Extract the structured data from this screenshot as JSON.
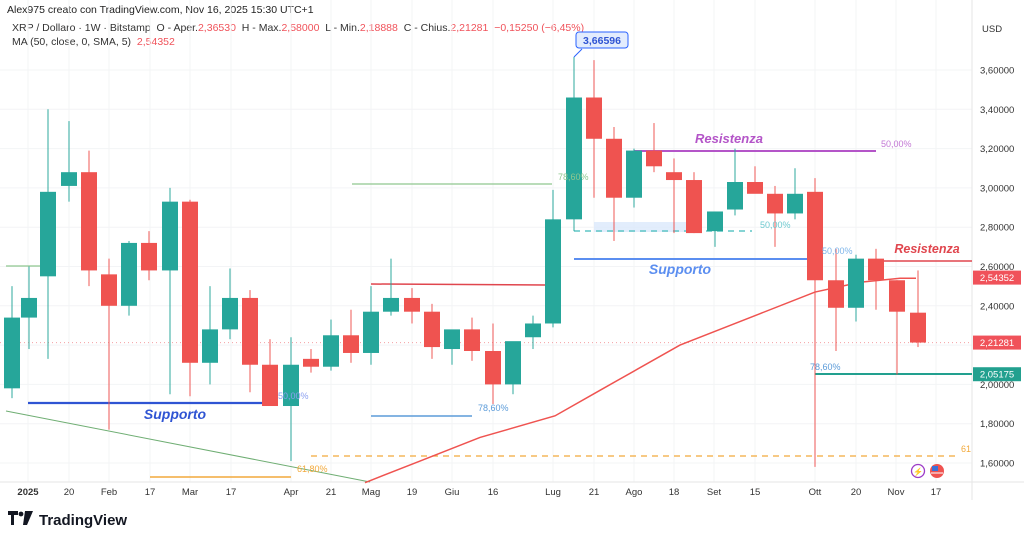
{
  "header": {
    "created": "Alex975 creato con TradingView.com, Nov 16, 2025 15:30 UTC+1",
    "symbol": "XRP / Dollaro · 1W · Bitstamp",
    "o_label": "O - Aper.",
    "o_value": "2,36530",
    "h_label": "H - Max.",
    "h_value": "2,58000",
    "l_label": "L - Min.",
    "l_value": "2,18888",
    "c_label": "C - Chius.",
    "c_value": "2,21281",
    "change": "−0,15250 (−6,45%)",
    "ma_label": "MA (50, close, 0, SMA, 5)",
    "ma_value": "2,54352"
  },
  "logo": {
    "mark": "TV",
    "text": "TradingView"
  },
  "chart_data": {
    "type": "candlestick",
    "title": "XRP / Dollaro · 1W · Bitstamp",
    "currency": "USD",
    "ylim": [
      1.5,
      3.75
    ],
    "y_ticks": [
      "3,60000",
      "3,40000",
      "3,20000",
      "3,00000",
      "2,80000",
      "2,60000",
      "2,40000",
      "2,20000",
      "2,00000",
      "1,80000",
      "1,60000"
    ],
    "x_ticks": [
      {
        "label": "2025",
        "x": 28,
        "bold": true
      },
      {
        "label": "20",
        "x": 69
      },
      {
        "label": "Feb",
        "x": 109
      },
      {
        "label": "17",
        "x": 150
      },
      {
        "label": "Mar",
        "x": 190
      },
      {
        "label": "17",
        "x": 231
      },
      {
        "label": "Apr",
        "x": 291
      },
      {
        "label": "21",
        "x": 331
      },
      {
        "label": "Mag",
        "x": 371
      },
      {
        "label": "19",
        "x": 412
      },
      {
        "label": "Giu",
        "x": 452
      },
      {
        "label": "16",
        "x": 493
      },
      {
        "label": "Lug",
        "x": 553
      },
      {
        "label": "21",
        "x": 594
      },
      {
        "label": "Ago",
        "x": 634
      },
      {
        "label": "18",
        "x": 674
      },
      {
        "label": "Set",
        "x": 714
      },
      {
        "label": "15",
        "x": 755
      },
      {
        "label": "Ott",
        "x": 815
      },
      {
        "label": "20",
        "x": 856
      },
      {
        "label": "Nov",
        "x": 896
      },
      {
        "label": "17",
        "x": 936
      }
    ],
    "candles": [
      {
        "x": 12,
        "o": 1.98,
        "h": 2.5,
        "l": 1.93,
        "c": 2.34
      },
      {
        "x": 29,
        "o": 2.34,
        "h": 2.6,
        "l": 2.18,
        "c": 2.44
      },
      {
        "x": 48,
        "o": 2.55,
        "h": 3.4,
        "l": 2.13,
        "c": 2.98
      },
      {
        "x": 69,
        "o": 3.01,
        "h": 3.34,
        "l": 2.93,
        "c": 3.08
      },
      {
        "x": 89,
        "o": 3.08,
        "h": 3.19,
        "l": 2.5,
        "c": 2.58
      },
      {
        "x": 109,
        "o": 2.56,
        "h": 2.64,
        "l": 1.77,
        "c": 2.4
      },
      {
        "x": 129,
        "o": 2.4,
        "h": 2.73,
        "l": 2.35,
        "c": 2.72
      },
      {
        "x": 149,
        "o": 2.72,
        "h": 2.78,
        "l": 2.53,
        "c": 2.58
      },
      {
        "x": 170,
        "o": 2.58,
        "h": 3.0,
        "l": 1.95,
        "c": 2.93
      },
      {
        "x": 190,
        "o": 2.93,
        "h": 2.94,
        "l": 1.94,
        "c": 2.11
      },
      {
        "x": 210,
        "o": 2.11,
        "h": 2.5,
        "l": 2.0,
        "c": 2.28
      },
      {
        "x": 230,
        "o": 2.28,
        "h": 2.59,
        "l": 2.23,
        "c": 2.44
      },
      {
        "x": 250,
        "o": 2.44,
        "h": 2.48,
        "l": 1.96,
        "c": 2.1
      },
      {
        "x": 270,
        "o": 2.1,
        "h": 2.23,
        "l": 1.89,
        "c": 1.89
      },
      {
        "x": 291,
        "o": 1.89,
        "h": 2.24,
        "l": 1.61,
        "c": 2.1
      },
      {
        "x": 311,
        "o": 2.13,
        "h": 2.18,
        "l": 2.06,
        "c": 2.09
      },
      {
        "x": 331,
        "o": 2.09,
        "h": 2.33,
        "l": 2.07,
        "c": 2.25
      },
      {
        "x": 351,
        "o": 2.25,
        "h": 2.38,
        "l": 2.11,
        "c": 2.16
      },
      {
        "x": 371,
        "o": 2.16,
        "h": 2.5,
        "l": 2.1,
        "c": 2.37
      },
      {
        "x": 391,
        "o": 2.37,
        "h": 2.64,
        "l": 2.35,
        "c": 2.44
      },
      {
        "x": 412,
        "o": 2.44,
        "h": 2.49,
        "l": 2.31,
        "c": 2.37
      },
      {
        "x": 432,
        "o": 2.37,
        "h": 2.41,
        "l": 2.13,
        "c": 2.19
      },
      {
        "x": 452,
        "o": 2.18,
        "h": 2.25,
        "l": 2.1,
        "c": 2.28
      },
      {
        "x": 472,
        "o": 2.28,
        "h": 2.34,
        "l": 2.12,
        "c": 2.17
      },
      {
        "x": 493,
        "o": 2.17,
        "h": 2.31,
        "l": 1.9,
        "c": 2.0
      },
      {
        "x": 513,
        "o": 2.0,
        "h": 2.2,
        "l": 1.95,
        "c": 2.22
      },
      {
        "x": 533,
        "o": 2.24,
        "h": 2.35,
        "l": 2.18,
        "c": 2.31
      },
      {
        "x": 553,
        "o": 2.31,
        "h": 2.99,
        "l": 2.29,
        "c": 2.84
      },
      {
        "x": 574,
        "o": 2.84,
        "h": 3.666,
        "l": 2.78,
        "c": 3.46
      },
      {
        "x": 594,
        "o": 3.46,
        "h": 3.65,
        "l": 2.95,
        "c": 3.25
      },
      {
        "x": 614,
        "o": 3.25,
        "h": 3.31,
        "l": 2.73,
        "c": 2.95
      },
      {
        "x": 634,
        "o": 2.95,
        "h": 3.2,
        "l": 2.9,
        "c": 3.19
      },
      {
        "x": 654,
        "o": 3.19,
        "h": 3.33,
        "l": 3.08,
        "c": 3.11
      },
      {
        "x": 674,
        "o": 3.08,
        "h": 3.15,
        "l": 2.77,
        "c": 3.04
      },
      {
        "x": 694,
        "o": 3.04,
        "h": 3.08,
        "l": 2.77,
        "c": 2.77
      },
      {
        "x": 715,
        "o": 2.78,
        "h": 2.88,
        "l": 2.7,
        "c": 2.88
      },
      {
        "x": 735,
        "o": 2.89,
        "h": 3.2,
        "l": 2.86,
        "c": 3.03
      },
      {
        "x": 755,
        "o": 3.03,
        "h": 3.11,
        "l": 2.98,
        "c": 2.97
      },
      {
        "x": 775,
        "o": 2.97,
        "h": 3.01,
        "l": 2.7,
        "c": 2.87
      },
      {
        "x": 795,
        "o": 2.87,
        "h": 3.1,
        "l": 2.84,
        "c": 2.97
      },
      {
        "x": 815,
        "o": 2.98,
        "h": 3.05,
        "l": 1.58,
        "c": 2.53
      },
      {
        "x": 836,
        "o": 2.53,
        "h": 2.69,
        "l": 2.17,
        "c": 2.39
      },
      {
        "x": 856,
        "o": 2.39,
        "h": 2.66,
        "l": 2.32,
        "c": 2.64
      },
      {
        "x": 876,
        "o": 2.64,
        "h": 2.69,
        "l": 2.38,
        "c": 2.53
      },
      {
        "x": 897,
        "o": 2.53,
        "h": 2.53,
        "l": 2.05,
        "c": 2.37
      },
      {
        "x": 918,
        "o": 2.365,
        "h": 2.58,
        "l": 2.19,
        "c": 2.213
      }
    ],
    "ma_line": [
      [
        365,
        1.5
      ],
      [
        420,
        1.61
      ],
      [
        480,
        1.73
      ],
      [
        555,
        1.84
      ],
      [
        600,
        1.97
      ],
      [
        680,
        2.2
      ],
      [
        760,
        2.36
      ],
      [
        815,
        2.47
      ],
      [
        860,
        2.52
      ],
      [
        900,
        2.54
      ],
      [
        916,
        2.54
      ]
    ],
    "price_labels": [
      {
        "value": "2,54352",
        "price": 2.5435,
        "color": "#f0525a"
      },
      {
        "value": "2,21281",
        "price": 2.2128,
        "color": "#f0525a"
      },
      {
        "value": "2,05175",
        "price": 2.0518,
        "color": "#22a08f"
      }
    ],
    "high_callout": {
      "value": "3,66596",
      "price": 3.666,
      "x": 574
    },
    "annotations": [
      {
        "text": "Supporto",
        "x": 175,
        "y": 419,
        "color": "#2f54d3",
        "size": 14
      },
      {
        "text": "Supporto",
        "x": 680,
        "y": 274,
        "color": "#5b8ef0",
        "size": 14
      },
      {
        "text": "Resistenza",
        "x": 729,
        "y": 143,
        "color": "#b455c8",
        "size": 13
      },
      {
        "text": "Resistenza",
        "x": 927,
        "y": 253,
        "color": "#e0464e",
        "size": 12.5
      }
    ],
    "fib_labels": [
      {
        "text": "50,00%",
        "x": 881,
        "y": 147,
        "color": "#c277d4"
      },
      {
        "text": "50,00%",
        "x": 760,
        "y": 228,
        "color": "#6ec9cf"
      },
      {
        "text": "50,00%",
        "x": 822,
        "y": 254,
        "color": "#7db5ea"
      },
      {
        "text": "78,60%",
        "x": 810,
        "y": 370,
        "color": "#5b9bd9"
      },
      {
        "text": "78,60%",
        "x": 478,
        "y": 411,
        "color": "#5b9bd9"
      },
      {
        "text": "78,60%",
        "x": 558,
        "y": 180,
        "color": "#8fc78f"
      },
      {
        "text": "50,00%",
        "x": 278,
        "y": 399,
        "color": "#8b9ff0"
      },
      {
        "text": "61,80%",
        "x": 297,
        "y": 472,
        "color": "#f2a93b"
      },
      {
        "text": "61",
        "x": 961,
        "y": 452,
        "color": "#f2a93b"
      }
    ]
  },
  "axis": {
    "currency": "USD"
  }
}
